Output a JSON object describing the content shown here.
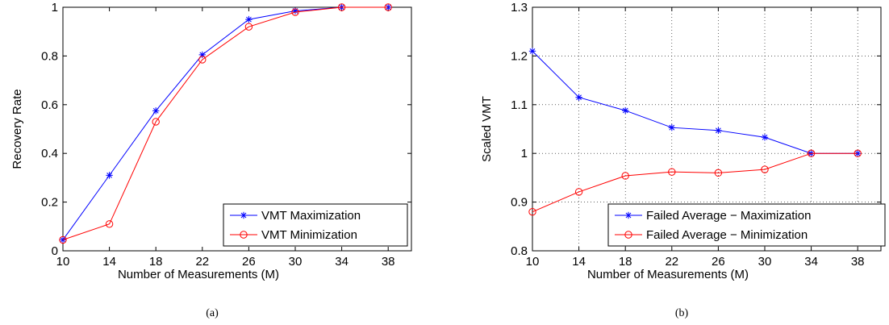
{
  "chart_data": [
    {
      "type": "line",
      "caption": "(a)",
      "xlabel": "Number of Measurements (M)",
      "ylabel": "Recovery Rate",
      "x": [
        10,
        14,
        18,
        22,
        26,
        30,
        34,
        38
      ],
      "xlim": [
        10,
        40
      ],
      "ylim": [
        0,
        1
      ],
      "xticks": [
        "10",
        "14",
        "18",
        "22",
        "26",
        "30",
        "34",
        "38"
      ],
      "yticks": [
        "0",
        "0.2",
        "0.4",
        "0.6",
        "0.8",
        "1"
      ],
      "grid": false,
      "legend_position": "bottom-right",
      "series": [
        {
          "name": "VMT Maximization",
          "color": "#0000ff",
          "marker": "star",
          "values": [
            0.045,
            0.31,
            0.575,
            0.805,
            0.95,
            0.985,
            1.0,
            1.0
          ]
        },
        {
          "name": "VMT Minimization",
          "color": "#ff0000",
          "marker": "circle",
          "values": [
            0.045,
            0.11,
            0.53,
            0.785,
            0.92,
            0.98,
            1.0,
            1.0
          ]
        }
      ]
    },
    {
      "type": "line",
      "caption": "(b)",
      "xlabel": "Number of Measurements (M)",
      "ylabel": "Scaled VMT",
      "x": [
        10,
        14,
        18,
        22,
        26,
        30,
        34,
        38
      ],
      "xlim": [
        10,
        40
      ],
      "ylim": [
        0.8,
        1.3
      ],
      "xticks": [
        "10",
        "14",
        "18",
        "22",
        "26",
        "30",
        "34",
        "38"
      ],
      "yticks": [
        "0.8",
        "0.9",
        "1",
        "1.1",
        "1.2",
        "1.3"
      ],
      "grid": true,
      "legend_position": "bottom-right",
      "series": [
        {
          "name": "Failed Average − Maximization",
          "color": "#0000ff",
          "marker": "star",
          "values": [
            1.21,
            1.115,
            1.088,
            1.053,
            1.047,
            1.033,
            1.0,
            1.0
          ]
        },
        {
          "name": "Failed Average − Minimization",
          "color": "#ff0000",
          "marker": "circle",
          "values": [
            0.88,
            0.921,
            0.954,
            0.962,
            0.96,
            0.967,
            1.0,
            1.0
          ]
        }
      ]
    }
  ]
}
